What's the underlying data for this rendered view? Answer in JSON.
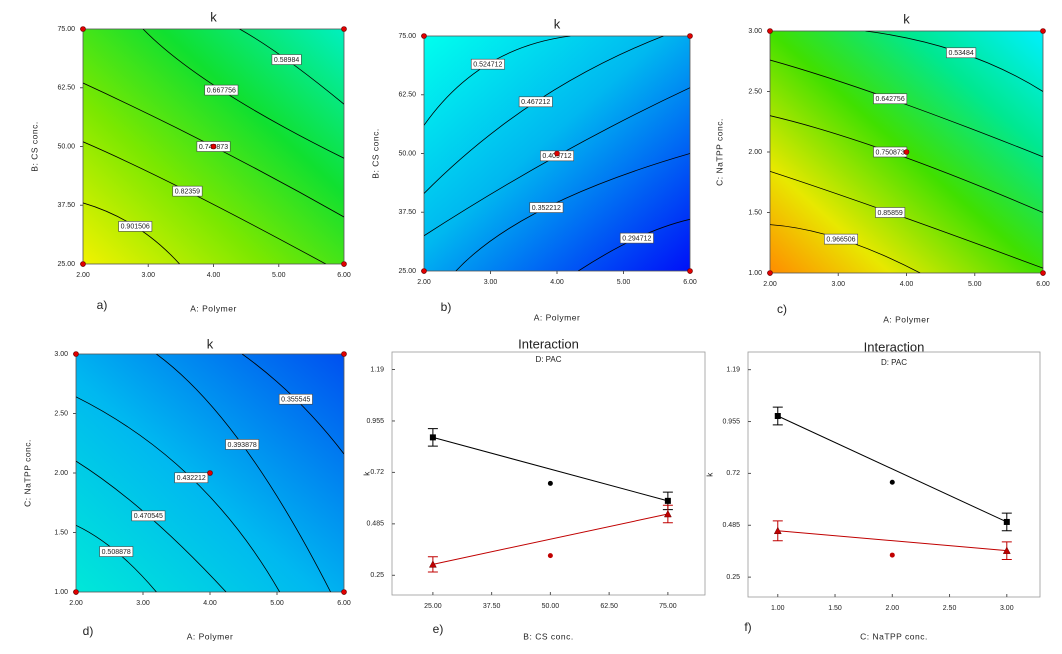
{
  "chart_data": [
    {
      "type": "contour",
      "title": "k",
      "panel_label": "a)",
      "xlabel": "A: Polymer",
      "ylabel": "B: CS conc.",
      "xlim": [
        2,
        6
      ],
      "ylim": [
        25,
        75
      ],
      "xticks": [
        {
          "value": 2,
          "label": "2.00"
        },
        {
          "value": 3,
          "label": "3.00"
        },
        {
          "value": 4,
          "label": "4.00"
        },
        {
          "value": 5,
          "label": "5.00"
        },
        {
          "value": 6,
          "label": "6.00"
        }
      ],
      "yticks": [
        {
          "value": 25,
          "label": "25.00"
        },
        {
          "value": 37.5,
          "label": "37.50"
        },
        {
          "value": 50,
          "label": "50.00"
        },
        {
          "value": 62.5,
          "label": "62.50"
        },
        {
          "value": 75,
          "label": "75.00"
        }
      ],
      "levels": [
        0.58984,
        0.667756,
        0.745873,
        0.82359,
        0.901506
      ],
      "design_points": {
        "x": [
          2,
          2,
          6,
          6,
          4
        ],
        "y": [
          25,
          75,
          25,
          75,
          50
        ]
      }
    },
    {
      "type": "contour",
      "title": "k",
      "panel_label": "b)",
      "xlabel": "A: Polymer",
      "ylabel": "B: CS conc.",
      "xlim": [
        2,
        6
      ],
      "ylim": [
        25,
        75
      ],
      "xticks": [
        {
          "value": 2,
          "label": "2.00"
        },
        {
          "value": 3,
          "label": "3.00"
        },
        {
          "value": 4,
          "label": "4.00"
        },
        {
          "value": 5,
          "label": "5.00"
        },
        {
          "value": 6,
          "label": "6.00"
        }
      ],
      "yticks": [
        {
          "value": 25,
          "label": "25.00"
        },
        {
          "value": 37.5,
          "label": "37.50"
        },
        {
          "value": 50,
          "label": "50.00"
        },
        {
          "value": 62.5,
          "label": "62.50"
        },
        {
          "value": 75,
          "label": "75.00"
        }
      ],
      "levels": [
        0.524712,
        0.467212,
        0.409712,
        0.352212,
        0.294712
      ],
      "design_points": {
        "x": [
          2,
          2,
          6,
          6,
          4
        ],
        "y": [
          25,
          75,
          25,
          75,
          50
        ]
      }
    },
    {
      "type": "contour",
      "title": "k",
      "panel_label": "c)",
      "xlabel": "A: Polymer",
      "ylabel": "C: NaTPP conc.",
      "xlim": [
        2,
        6
      ],
      "ylim": [
        1,
        3
      ],
      "xticks": [
        {
          "value": 2,
          "label": "2.00"
        },
        {
          "value": 3,
          "label": "3.00"
        },
        {
          "value": 4,
          "label": "4.00"
        },
        {
          "value": 5,
          "label": "5.00"
        },
        {
          "value": 6,
          "label": "6.00"
        }
      ],
      "yticks": [
        {
          "value": 1,
          "label": "1.00"
        },
        {
          "value": 1.5,
          "label": "1.50"
        },
        {
          "value": 2,
          "label": "2.00"
        },
        {
          "value": 2.5,
          "label": "2.50"
        },
        {
          "value": 3,
          "label": "3.00"
        }
      ],
      "levels": [
        0.53484,
        0.642756,
        0.750873,
        0.85859,
        0.966506
      ],
      "design_points": {
        "x": [
          2,
          2,
          6,
          6,
          4
        ],
        "y": [
          1,
          3,
          1,
          3,
          2
        ]
      }
    },
    {
      "type": "contour",
      "title": "k",
      "panel_label": "d)",
      "xlabel": "A: Polymer",
      "ylabel": "C: NaTPP conc.",
      "xlim": [
        2,
        6
      ],
      "ylim": [
        1,
        3
      ],
      "xticks": [
        {
          "value": 2,
          "label": "2.00"
        },
        {
          "value": 3,
          "label": "3.00"
        },
        {
          "value": 4,
          "label": "4.00"
        },
        {
          "value": 5,
          "label": "5.00"
        },
        {
          "value": 6,
          "label": "6.00"
        }
      ],
      "yticks": [
        {
          "value": 1,
          "label": "1.00"
        },
        {
          "value": 1.5,
          "label": "1.50"
        },
        {
          "value": 2,
          "label": "2.00"
        },
        {
          "value": 2.5,
          "label": "2.50"
        },
        {
          "value": 3,
          "label": "3.00"
        }
      ],
      "levels": [
        0.355545,
        0.393878,
        0.432212,
        0.470545,
        0.508878
      ],
      "design_points": {
        "x": [
          2,
          2,
          6,
          6,
          4
        ],
        "y": [
          1,
          3,
          1,
          3,
          2
        ]
      }
    },
    {
      "type": "interaction",
      "title": "Interaction",
      "subtitle": "D: PAC",
      "panel_label": "e)",
      "xlabel": "B: CS conc.",
      "ylabel": "k",
      "xlim": [
        16.3,
        82.9
      ],
      "ylim": [
        0.16,
        1.27
      ],
      "xticks": [
        {
          "value": 25,
          "label": "25.00"
        },
        {
          "value": 37.5,
          "label": "37.50"
        },
        {
          "value": 50,
          "label": "50.00"
        },
        {
          "value": 62.5,
          "label": "62.50"
        },
        {
          "value": 75,
          "label": "75.00"
        }
      ],
      "yticks": [
        0.25,
        0.485,
        0.72,
        0.955,
        1.19
      ],
      "x": [
        25,
        75
      ],
      "series": [
        {
          "color": "#000000",
          "marker": "square",
          "values": [
            0.88,
            0.59
          ],
          "errors": [
            0.04,
            0.04
          ]
        },
        {
          "color": "#c00000",
          "marker": "triangle",
          "values": [
            0.3,
            0.53
          ],
          "errors": [
            0.035,
            0.04
          ]
        }
      ],
      "center_points": {
        "x": [
          50,
          50
        ],
        "values": [
          0.67,
          0.34
        ]
      }
    },
    {
      "type": "interaction",
      "title": "Interaction",
      "subtitle": "D: PAC",
      "panel_label": "f)",
      "xlabel": "C: NaTPP conc.",
      "ylabel": "k",
      "xlim": [
        0.74,
        3.29
      ],
      "ylim": [
        0.16,
        1.27
      ],
      "xticks": [
        {
          "value": 1,
          "label": "1.00"
        },
        {
          "value": 1.5,
          "label": "1.50"
        },
        {
          "value": 2,
          "label": "2.00"
        },
        {
          "value": 2.5,
          "label": "2.50"
        },
        {
          "value": 3,
          "label": "3.00"
        }
      ],
      "yticks": [
        0.25,
        0.485,
        0.72,
        0.955,
        1.19
      ],
      "x": [
        1,
        3
      ],
      "series": [
        {
          "color": "#000000",
          "marker": "square",
          "values": [
            0.98,
            0.5
          ],
          "errors": [
            0.04,
            0.04
          ]
        },
        {
          "color": "#c00000",
          "marker": "triangle",
          "values": [
            0.46,
            0.37
          ],
          "errors": [
            0.045,
            0.04
          ]
        }
      ],
      "center_points": {
        "x": [
          2,
          2
        ],
        "values": [
          0.68,
          0.35
        ]
      }
    }
  ]
}
